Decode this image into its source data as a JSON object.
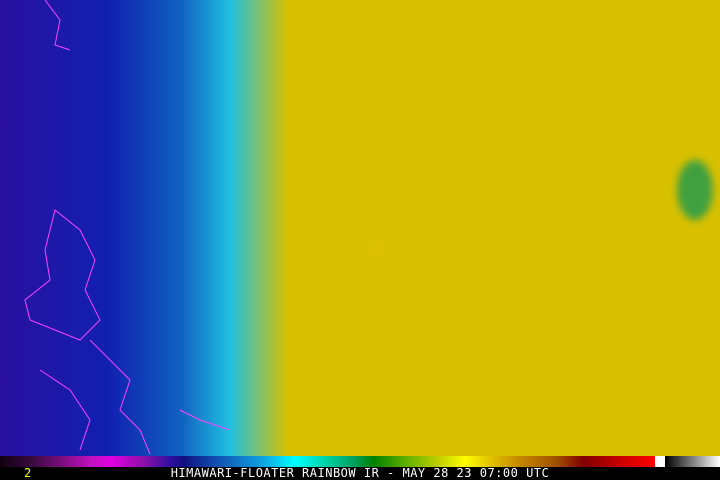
{
  "frame_number": "2",
  "title": "HIMAWARI-FLOATER RAINBOW IR - MAY 28 23 07:00 UTC",
  "colors": {
    "cold_cloud_top": "#c00000",
    "high_cloud": "#ffff00",
    "mid_cloud": "#00a060",
    "low_cloud": "#00ffff",
    "clear_ocean": "#1010a0",
    "coastline": "#ff40ff"
  }
}
